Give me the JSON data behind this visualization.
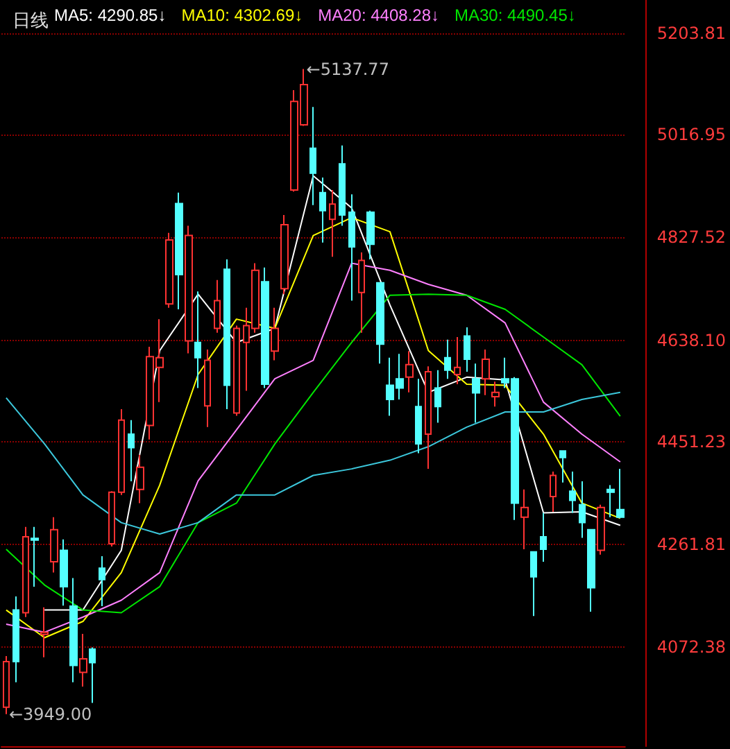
{
  "chart_data": {
    "type": "candlestick",
    "title": "日线",
    "categories": [
      null,
      null,
      null,
      null,
      null,
      null,
      null,
      null,
      null,
      null,
      null,
      null,
      null,
      null,
      null,
      null,
      null,
      null,
      null,
      null,
      null,
      null,
      null,
      null,
      null,
      null,
      null,
      null,
      null,
      null,
      null,
      null,
      null,
      null,
      null,
      null,
      null,
      null,
      null,
      null,
      null,
      null,
      null,
      null,
      null,
      null,
      null,
      null,
      null,
      null,
      null,
      null,
      null,
      null,
      null,
      null,
      null,
      null,
      null,
      null,
      null,
      null,
      null,
      null,
      null
    ],
    "ohlc": [
      [
        3962,
        4056,
        3949,
        4046
      ],
      [
        4141,
        4166,
        4008,
        4046
      ],
      [
        4136,
        4294,
        4128,
        4276
      ],
      [
        4273,
        4294,
        4184,
        4270
      ],
      [
        4096,
        4146,
        4054,
        4100
      ],
      [
        4230,
        4312,
        4210,
        4289
      ],
      [
        4251,
        4271,
        4149,
        4184
      ],
      [
        4148,
        4200,
        4008,
        4039
      ],
      [
        4026,
        4097,
        4000,
        4051
      ],
      [
        4069,
        4072,
        3970,
        4044
      ],
      [
        4218,
        4240,
        4148,
        4197
      ],
      [
        4263,
        4360,
        4258,
        4358
      ],
      [
        4358,
        4511,
        4353,
        4491
      ],
      [
        4465,
        4491,
        4378,
        4440
      ],
      [
        4363,
        4427,
        4338,
        4404
      ],
      [
        4481,
        4626,
        4455,
        4608
      ],
      [
        4588,
        4677,
        4524,
        4606
      ],
      [
        4705,
        4836,
        4698,
        4823
      ],
      [
        4890,
        4910,
        4695,
        4759
      ],
      [
        4637,
        4849,
        4614,
        4831
      ],
      [
        4634,
        4728,
        4550,
        4606
      ],
      [
        4517,
        4621,
        4478,
        4601
      ],
      [
        4660,
        4749,
        4652,
        4711
      ],
      [
        4769,
        4787,
        4511,
        4555
      ],
      [
        4504,
        4665,
        4499,
        4660
      ],
      [
        4634,
        4698,
        4545,
        4665
      ],
      [
        4660,
        4780,
        4652,
        4767
      ],
      [
        4746,
        4772,
        4550,
        4557
      ],
      [
        4618,
        4698,
        4601,
        4660
      ],
      [
        4733,
        4869,
        4723,
        4851
      ],
      [
        4915,
        5099,
        4912,
        5078
      ],
      [
        5035,
        5137.77,
        5033,
        5109
      ],
      [
        4992,
        5068,
        4887,
        4946
      ],
      [
        4910,
        4938,
        4818,
        4877
      ],
      [
        4861,
        4915,
        4792,
        4889
      ],
      [
        4963,
        4997,
        4849,
        4869
      ],
      [
        4874,
        4907,
        4711,
        4810
      ],
      [
        4726,
        4800,
        4652,
        4785
      ],
      [
        4874,
        4877,
        4787,
        4815
      ],
      [
        4744,
        4744,
        4595,
        4631
      ],
      [
        4555,
        4606,
        4499,
        4529
      ],
      [
        4567,
        4613,
        4529,
        4550
      ],
      [
        4570,
        4618,
        4542,
        4593
      ],
      [
        4516,
        4567,
        4430,
        4447
      ],
      [
        4465,
        4590,
        4401,
        4580
      ],
      [
        4550,
        4583,
        4486,
        4516
      ],
      [
        4606,
        4639,
        4567,
        4583
      ],
      [
        4575,
        4644,
        4557,
        4588
      ],
      [
        4646,
        4662,
        4580,
        4603
      ],
      [
        4567,
        4595,
        4486,
        4541
      ],
      [
        4567,
        4621,
        4537,
        4603
      ],
      [
        4534,
        4562,
        4516,
        4542
      ],
      [
        4567,
        4606,
        4550,
        4560
      ],
      [
        4567,
        4570,
        4307,
        4338
      ],
      [
        4312,
        4363,
        4253,
        4330
      ],
      [
        4248,
        4248,
        4130,
        4202
      ],
      [
        4276,
        4320,
        4230,
        4253
      ],
      [
        4350,
        4396,
        4322,
        4389
      ],
      [
        4434,
        4434,
        4376,
        4422
      ],
      [
        4360,
        4396,
        4320,
        4343
      ],
      [
        4335,
        4378,
        4274,
        4302
      ],
      [
        4289,
        4289,
        4138,
        4182
      ],
      [
        4251,
        4335,
        4243,
        4330
      ],
      [
        4363,
        4371,
        4312,
        4358
      ],
      [
        4326,
        4401,
        4310,
        4312
      ]
    ],
    "series": [
      {
        "type": "line",
        "name": "MA5: 4290.85↓",
        "color": "#ffffff",
        "values": [
          null,
          null,
          null,
          null,
          4141,
          null,
          null,
          null,
          4141,
          null,
          null,
          null,
          4251,
          null,
          null,
          null,
          4619,
          null,
          null,
          null,
          4723,
          null,
          null,
          null,
          4634,
          null,
          null,
          null,
          4660,
          null,
          null,
          null,
          4941,
          null,
          null,
          null,
          4882,
          null,
          null,
          null,
          4703,
          null,
          null,
          null,
          4542,
          null,
          null,
          null,
          4570,
          null,
          null,
          null,
          4565,
          null,
          null,
          null,
          4320,
          null,
          null,
          null,
          4322,
          null,
          null,
          null,
          4297
        ]
      },
      {
        "type": "line",
        "name": "MA10: 4302.69↓",
        "color": "#ffff00",
        "values": [
          4141,
          null,
          null,
          null,
          4090,
          null,
          null,
          null,
          4120,
          null,
          null,
          null,
          4210,
          null,
          null,
          null,
          4371,
          null,
          null,
          null,
          4575,
          null,
          null,
          null,
          4677,
          null,
          null,
          null,
          4660,
          null,
          null,
          null,
          4831,
          null,
          null,
          null,
          4864,
          null,
          null,
          null,
          4838,
          null,
          null,
          null,
          4619,
          null,
          null,
          null,
          4557,
          null,
          null,
          null,
          4555,
          null,
          null,
          null,
          4465,
          null,
          null,
          null,
          4338,
          null,
          null,
          null,
          4310
        ]
      },
      {
        "type": "line",
        "name": "MA20: 4408.28↓",
        "color": "#ff80ff",
        "values": [
          4115,
          null,
          null,
          null,
          4100,
          null,
          null,
          null,
          4128,
          null,
          null,
          null,
          4159,
          null,
          null,
          null,
          4210,
          null,
          null,
          null,
          4379,
          null,
          null,
          null,
          4473,
          null,
          null,
          null,
          4567,
          null,
          null,
          null,
          4601,
          null,
          null,
          null,
          4780,
          null,
          null,
          null,
          4767,
          null,
          null,
          null,
          4741,
          null,
          null,
          null,
          4721,
          null,
          null,
          null,
          4670,
          null,
          null,
          null,
          4524,
          null,
          null,
          null,
          4465,
          null,
          null,
          null,
          4414
        ]
      },
      {
        "type": "line",
        "name": "MA30: 4490.45↓",
        "color": "#00e600",
        "values": [
          4253,
          null,
          null,
          null,
          4187,
          null,
          null,
          null,
          4141,
          null,
          null,
          null,
          4136,
          null,
          null,
          null,
          4184,
          null,
          null,
          null,
          4302,
          null,
          null,
          null,
          4338,
          null,
          null,
          null,
          4447,
          null,
          null,
          null,
          4542,
          null,
          null,
          null,
          4634,
          null,
          null,
          null,
          4721,
          null,
          null,
          null,
          4723,
          null,
          null,
          null,
          4721,
          null,
          null,
          null,
          4695,
          null,
          null,
          null,
          4644,
          null,
          null,
          null,
          4593,
          null,
          null,
          null,
          4498
        ]
      },
      {
        "type": "line",
        "color": "#3cc8dc",
        "values": [
          4532,
          null,
          null,
          null,
          4447,
          null,
          null,
          null,
          4353,
          null,
          null,
          null,
          4302,
          null,
          null,
          null,
          4281,
          null,
          null,
          null,
          4302,
          null,
          null,
          null,
          4353,
          null,
          null,
          null,
          4353,
          null,
          null,
          null,
          4389,
          null,
          null,
          null,
          4401,
          null,
          null,
          null,
          4417,
          null,
          null,
          null,
          4442,
          null,
          null,
          null,
          4478,
          null,
          null,
          null,
          4506,
          null,
          null,
          null,
          4506,
          null,
          null,
          null,
          4529,
          null,
          null,
          null,
          4542
        ]
      }
    ],
    "ylim": [
      3890,
      5265
    ],
    "yticks": [
      4072.38,
      4261.81,
      4451.23,
      {
        "value": 4638.1,
        "label": "4638.10"
      },
      4827.52,
      5016.95,
      5203.81
    ],
    "grid": "y",
    "legend": "top left",
    "tick_labels": "y",
    "annotations": [
      "←5137.77",
      "←3949.00"
    ]
  }
}
